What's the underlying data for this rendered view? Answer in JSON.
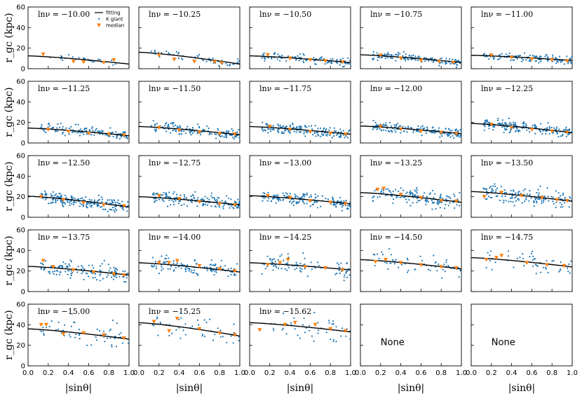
{
  "chart_data": {
    "type": "scatter",
    "grid": {
      "rows": 5,
      "cols": 5
    },
    "xlim": [
      0.0,
      1.0
    ],
    "ylim": [
      0,
      60
    ],
    "xticks": [
      "0.0",
      "0.2",
      "0.4",
      "0.6",
      "0.8",
      "1.0"
    ],
    "yticks": [
      "0",
      "20",
      "40",
      "60"
    ],
    "xlabel": "|sinθ|",
    "ylabel": "r_gc (kpc)",
    "legend": {
      "placement": "top-right of first panel",
      "entries": [
        "fitting",
        "K giant",
        "median"
      ]
    },
    "panels": [
      {
        "label": "lnν = −10.00",
        "fit": [
          12.5,
          4.5
        ],
        "n": 25,
        "noise": 1.5,
        "median": [
          [
            0.15,
            14
          ],
          [
            0.45,
            7
          ],
          [
            0.55,
            6.5
          ],
          [
            0.75,
            6
          ],
          [
            0.85,
            8.5
          ]
        ]
      },
      {
        "label": "lnν = −10.25",
        "fit": [
          16,
          4.5
        ],
        "n": 60,
        "noise": 2,
        "median": [
          [
            0.2,
            13
          ],
          [
            0.35,
            9
          ],
          [
            0.55,
            7
          ],
          [
            0.75,
            6.5
          ],
          [
            0.82,
            5.5
          ]
        ]
      },
      {
        "label": "lnν = −10.50",
        "fit": [
          12.5,
          6
        ],
        "n": 100,
        "noise": 2,
        "median": [
          [
            0.18,
            13.5
          ],
          [
            0.4,
            10
          ],
          [
            0.6,
            8.5
          ],
          [
            0.75,
            7.5
          ],
          [
            0.92,
            6.5
          ]
        ]
      },
      {
        "label": "lnν = −10.75",
        "fit": [
          13.5,
          6
        ],
        "n": 140,
        "noise": 2,
        "median": [
          [
            0.2,
            13
          ],
          [
            0.4,
            10
          ],
          [
            0.6,
            8
          ],
          [
            0.78,
            7
          ],
          [
            0.92,
            6
          ]
        ]
      },
      {
        "label": "lnν = −11.00",
        "fit": [
          13,
          8
        ],
        "n": 130,
        "noise": 2,
        "median": [
          [
            0.2,
            13
          ],
          [
            0.4,
            11
          ],
          [
            0.6,
            9.5
          ],
          [
            0.8,
            8.5
          ],
          [
            0.95,
            7.5
          ]
        ]
      },
      {
        "label": "lnν = −11.25",
        "fit": [
          14.5,
          7
        ],
        "n": 130,
        "noise": 2.5,
        "median": [
          [
            0.2,
            13
          ],
          [
            0.4,
            11
          ],
          [
            0.6,
            9.5
          ],
          [
            0.8,
            8.5
          ],
          [
            0.95,
            7.5
          ]
        ]
      },
      {
        "label": "lnν = −11.50",
        "fit": [
          16,
          8
        ],
        "n": 150,
        "noise": 2.5,
        "median": [
          [
            0.2,
            15
          ],
          [
            0.4,
            12.5
          ],
          [
            0.6,
            10.5
          ],
          [
            0.8,
            9
          ],
          [
            0.95,
            8.5
          ]
        ]
      },
      {
        "label": "lnν = −11.75",
        "fit": [
          16,
          8.5
        ],
        "n": 170,
        "noise": 2.5,
        "median": [
          [
            0.2,
            16
          ],
          [
            0.4,
            13
          ],
          [
            0.6,
            11
          ],
          [
            0.8,
            9.5
          ],
          [
            0.95,
            8.5
          ]
        ]
      },
      {
        "label": "lnν = −12.00",
        "fit": [
          16.5,
          9
        ],
        "n": 180,
        "noise": 2.5,
        "median": [
          [
            0.2,
            16
          ],
          [
            0.4,
            13.5
          ],
          [
            0.6,
            11.5
          ],
          [
            0.8,
            10
          ],
          [
            0.95,
            9
          ]
        ]
      },
      {
        "label": "lnν = −12.25",
        "fit": [
          19,
          10
        ],
        "n": 200,
        "noise": 2.5,
        "median": [
          [
            0.2,
            18
          ],
          [
            0.4,
            15
          ],
          [
            0.6,
            13
          ],
          [
            0.8,
            11.5
          ],
          [
            0.95,
            10.5
          ]
        ]
      },
      {
        "label": "lnν = −12.50",
        "fit": [
          20.5,
          10
        ],
        "n": 200,
        "noise": 3,
        "median": [
          [
            0.13,
            20
          ],
          [
            0.35,
            17
          ],
          [
            0.55,
            14
          ],
          [
            0.75,
            12
          ],
          [
            0.95,
            11
          ]
        ]
      },
      {
        "label": "lnν = −12.75",
        "fit": [
          20,
          12
        ],
        "n": 170,
        "noise": 3,
        "median": [
          [
            0.2,
            21
          ],
          [
            0.4,
            18
          ],
          [
            0.6,
            15
          ],
          [
            0.8,
            13
          ],
          [
            0.95,
            12
          ]
        ]
      },
      {
        "label": "lnν = −13.00",
        "fit": [
          21,
          13
        ],
        "n": 170,
        "noise": 3,
        "median": [
          [
            0.18,
            21
          ],
          [
            0.4,
            19
          ],
          [
            0.6,
            16
          ],
          [
            0.8,
            14.5
          ],
          [
            0.95,
            13
          ]
        ]
      },
      {
        "label": "lnν = −13.25",
        "fit": [
          24,
          14.5
        ],
        "n": 150,
        "noise": 4,
        "median": [
          [
            0.17,
            27
          ],
          [
            0.23,
            28
          ],
          [
            0.4,
            22
          ],
          [
            0.6,
            19
          ],
          [
            0.8,
            16
          ],
          [
            0.95,
            15.5
          ]
        ]
      },
      {
        "label": "lnν = −13.50",
        "fit": [
          25,
          15.5
        ],
        "n": 150,
        "noise": 4,
        "median": [
          [
            0.13,
            20
          ],
          [
            0.3,
            24
          ],
          [
            0.5,
            21
          ],
          [
            0.7,
            19
          ],
          [
            0.85,
            17
          ],
          [
            0.95,
            16
          ]
        ]
      },
      {
        "label": "lnν = −13.75",
        "fit": [
          24.5,
          16
        ],
        "n": 130,
        "noise": 4,
        "median": [
          [
            0.15,
            30
          ],
          [
            0.25,
            24
          ],
          [
            0.45,
            21
          ],
          [
            0.65,
            19
          ],
          [
            0.85,
            17
          ],
          [
            0.95,
            16
          ]
        ]
      },
      {
        "label": "lnν = −14.00",
        "fit": [
          28,
          19
        ],
        "n": 120,
        "noise": 4,
        "median": [
          [
            0.2,
            28
          ],
          [
            0.3,
            28
          ],
          [
            0.38,
            30
          ],
          [
            0.6,
            25
          ],
          [
            0.8,
            22
          ],
          [
            0.95,
            20
          ]
        ]
      },
      {
        "label": "lnν = −14.25",
        "fit": [
          28,
          21
        ],
        "n": 90,
        "noise": 5,
        "median": [
          [
            0.18,
            26
          ],
          [
            0.3,
            28
          ],
          [
            0.38,
            31
          ],
          [
            0.55,
            24
          ],
          [
            0.75,
            23
          ],
          [
            0.92,
            21
          ]
        ]
      },
      {
        "label": "lnν = −14.50",
        "fit": [
          31,
          22
        ],
        "n": 60,
        "noise": 5,
        "median": [
          [
            0.15,
            29
          ],
          [
            0.25,
            31
          ],
          [
            0.4,
            28
          ],
          [
            0.6,
            26
          ],
          [
            0.8,
            24
          ],
          [
            0.95,
            23
          ]
        ]
      },
      {
        "label": "lnν = −14.75",
        "fit": [
          33,
          24
        ],
        "n": 50,
        "noise": 5,
        "median": [
          [
            0.15,
            31
          ],
          [
            0.25,
            33
          ],
          [
            0.3,
            35
          ],
          [
            0.55,
            28
          ],
          [
            0.75,
            26
          ],
          [
            0.92,
            25
          ]
        ]
      },
      {
        "label": "lnν = −15.00",
        "fit": [
          36,
          26
        ],
        "n": 60,
        "noise": 6,
        "median": [
          [
            0.13,
            40
          ],
          [
            0.18,
            40
          ],
          [
            0.35,
            31
          ],
          [
            0.55,
            32
          ],
          [
            0.75,
            30
          ],
          [
            0.95,
            27
          ]
        ]
      },
      {
        "label": "lnν = −15.25",
        "fit": [
          42,
          29
        ],
        "n": 50,
        "noise": 6,
        "median": [
          [
            0.15,
            43
          ],
          [
            0.3,
            34
          ],
          [
            0.38,
            46
          ],
          [
            0.6,
            36
          ],
          [
            0.8,
            32
          ],
          [
            0.95,
            30
          ]
        ]
      },
      {
        "label": "lnν = −15.62",
        "fit": [
          42,
          33
        ],
        "n": 45,
        "noise": 7,
        "median": [
          [
            0.1,
            35
          ],
          [
            0.35,
            40
          ],
          [
            0.45,
            42
          ],
          [
            0.65,
            40
          ],
          [
            0.8,
            36
          ],
          [
            0.95,
            34
          ]
        ]
      },
      {
        "label": "None",
        "none": true
      },
      {
        "label": "None",
        "none": true
      }
    ]
  }
}
